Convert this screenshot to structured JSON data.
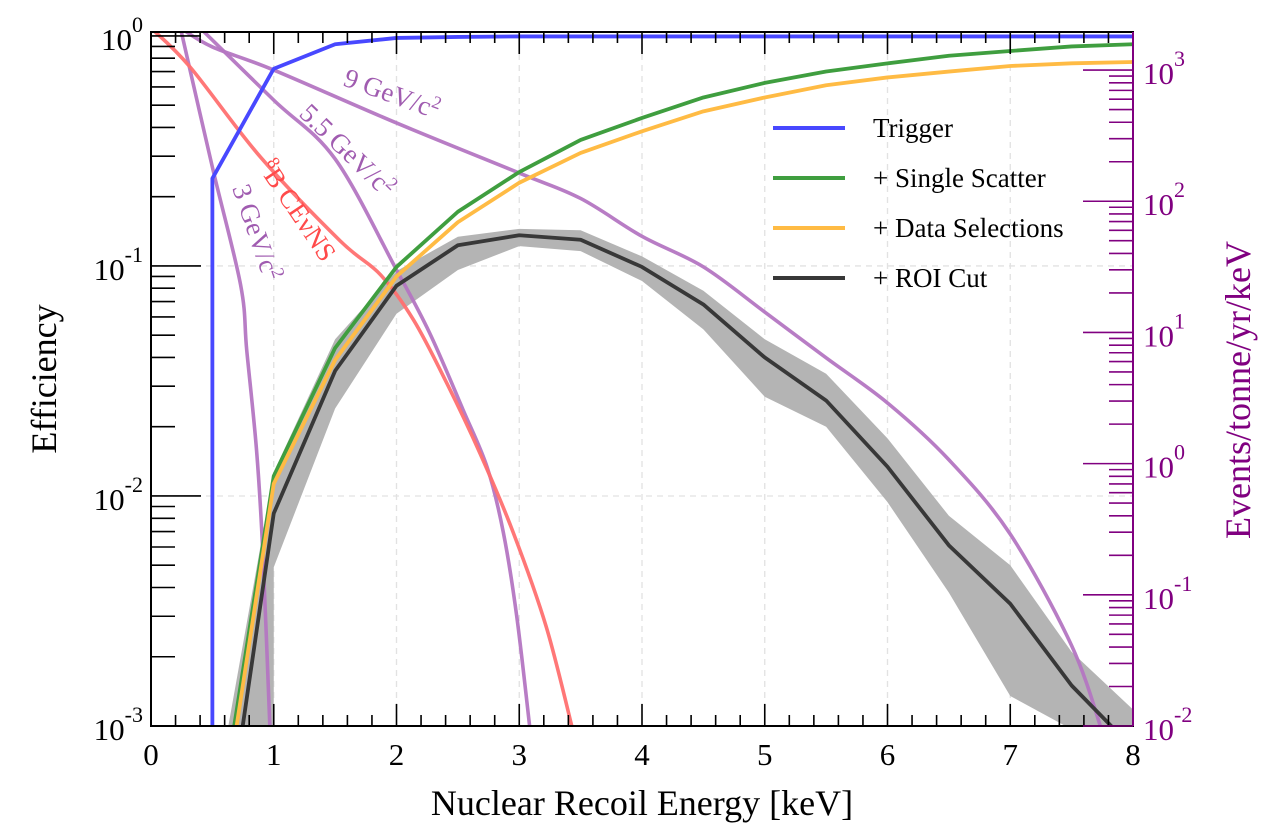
{
  "chart_data": {
    "type": "line",
    "xlabel": "Nuclear Recoil Energy [keV]",
    "ylabel": "Efficiency",
    "y2label": "Events/tonne/yr/keV",
    "xlim": [
      0,
      8
    ],
    "ylim": [
      0.001,
      1.04
    ],
    "y2lim": [
      0.01,
      1950
    ],
    "yscale": "log",
    "y2scale": "log",
    "grid": true,
    "legend_position": "upper-right",
    "xticks": [
      "0",
      "1",
      "2",
      "3",
      "4",
      "5",
      "6",
      "7",
      "8"
    ],
    "yticks": [
      {
        "base": "10",
        "exp": "0"
      },
      {
        "base": "10",
        "exp": "-1"
      },
      {
        "base": "10",
        "exp": "-2"
      },
      {
        "base": "10",
        "exp": "-3"
      }
    ],
    "y2ticks": [
      {
        "base": "10",
        "exp": "3"
      },
      {
        "base": "10",
        "exp": "2"
      },
      {
        "base": "10",
        "exp": "1"
      },
      {
        "base": "10",
        "exp": "0"
      },
      {
        "base": "10",
        "exp": "-1"
      },
      {
        "base": "10",
        "exp": "-2"
      }
    ],
    "colors": {
      "trigger": "#4848ff",
      "single": "#3f9e3f",
      "data": "#ffbb44",
      "roi": "#383838",
      "band": "#b4b4b4",
      "wimp": "#b476c2",
      "cevns": "#ff7070",
      "right_axis": "#800080"
    },
    "efficiency_series": [
      {
        "name": "Trigger",
        "color": "#4848ff",
        "points": [
          [
            0.5,
            0.001
          ],
          [
            0.5,
            0.24
          ],
          [
            1,
            0.72
          ],
          [
            1.5,
            0.92
          ],
          [
            2,
            0.98
          ],
          [
            2.5,
            0.99
          ],
          [
            3,
            0.995
          ],
          [
            4,
            0.995
          ],
          [
            5,
            0.995
          ],
          [
            6,
            0.995
          ],
          [
            7,
            0.995
          ],
          [
            8,
            0.995
          ]
        ]
      },
      {
        "name": "+ Single Scatter",
        "color": "#3f9e3f",
        "points": [
          [
            0.67,
            0.001
          ],
          [
            1,
            0.0122
          ],
          [
            1.5,
            0.044
          ],
          [
            2,
            0.099
          ],
          [
            2.5,
            0.172
          ],
          [
            3,
            0.256
          ],
          [
            3.5,
            0.353
          ],
          [
            4,
            0.44
          ],
          [
            4.5,
            0.54
          ],
          [
            5,
            0.625
          ],
          [
            5.5,
            0.7
          ],
          [
            6,
            0.76
          ],
          [
            6.5,
            0.82
          ],
          [
            7,
            0.86
          ],
          [
            7.5,
            0.9
          ],
          [
            8,
            0.92
          ]
        ]
      },
      {
        "name": "+ Data Selections",
        "color": "#ffbb44",
        "points": [
          [
            0.69,
            0.001
          ],
          [
            1,
            0.0113
          ],
          [
            1.5,
            0.039
          ],
          [
            2,
            0.09
          ],
          [
            2.5,
            0.155
          ],
          [
            3,
            0.23
          ],
          [
            3.5,
            0.31
          ],
          [
            4,
            0.385
          ],
          [
            4.5,
            0.47
          ],
          [
            5,
            0.54
          ],
          [
            5.5,
            0.61
          ],
          [
            6,
            0.66
          ],
          [
            6.5,
            0.7
          ],
          [
            7,
            0.74
          ],
          [
            7.5,
            0.76
          ],
          [
            8,
            0.77
          ]
        ]
      },
      {
        "name": "+ ROI Cut",
        "color": "#383838",
        "points": [
          [
            0.74,
            0.001
          ],
          [
            1,
            0.0084
          ],
          [
            1.5,
            0.035
          ],
          [
            2,
            0.082
          ],
          [
            2.5,
            0.123
          ],
          [
            3,
            0.136
          ],
          [
            3.5,
            0.13
          ],
          [
            4,
            0.099
          ],
          [
            4.5,
            0.068
          ],
          [
            5,
            0.04
          ],
          [
            5.5,
            0.026
          ],
          [
            6,
            0.0134
          ],
          [
            6.5,
            0.0061
          ],
          [
            7,
            0.0034
          ],
          [
            7.5,
            0.0015
          ],
          [
            7.87,
            0.001
          ]
        ]
      }
    ],
    "roi_band": {
      "upper": [
        [
          0.63,
          0.001
        ],
        [
          1,
          0.0127
        ],
        [
          1.5,
          0.048
        ],
        [
          2,
          0.095
        ],
        [
          2.5,
          0.134
        ],
        [
          3,
          0.145
        ],
        [
          3.5,
          0.143
        ],
        [
          4,
          0.11
        ],
        [
          4.5,
          0.078
        ],
        [
          5,
          0.048
        ],
        [
          5.5,
          0.034
        ],
        [
          6,
          0.0178
        ],
        [
          6.5,
          0.0082
        ],
        [
          7,
          0.005
        ],
        [
          7.5,
          0.0021
        ],
        [
          8,
          0.00118
        ]
      ],
      "lower": [
        [
          1,
          0.0049
        ],
        [
          1.5,
          0.024
        ],
        [
          2,
          0.062
        ],
        [
          2.5,
          0.096
        ],
        [
          3,
          0.122
        ],
        [
          3.5,
          0.116
        ],
        [
          4,
          0.086
        ],
        [
          4.5,
          0.053
        ],
        [
          5,
          0.027
        ],
        [
          5.5,
          0.02
        ],
        [
          6,
          0.0094
        ],
        [
          6.5,
          0.0038
        ],
        [
          7,
          0.00135
        ],
        [
          7.45,
          0.001
        ]
      ]
    },
    "rate_series": [
      {
        "label": "9 GeV/c",
        "color": "#b476c2",
        "points": [
          [
            0.24,
            1950
          ],
          [
            0.5,
            1500
          ],
          [
            1,
            1000
          ],
          [
            2,
            395
          ],
          [
            3,
            164
          ],
          [
            3.5,
            105
          ],
          [
            4,
            54
          ],
          [
            4.5,
            31.6
          ],
          [
            5,
            14.3
          ],
          [
            5.5,
            6.4
          ],
          [
            6,
            2.9
          ],
          [
            6.5,
            1.07
          ],
          [
            7,
            0.29
          ],
          [
            7.5,
            0.041
          ],
          [
            7.75,
            0.01
          ]
        ]
      },
      {
        "label": "5.5 GeV/c",
        "color": "#b476c2",
        "points": [
          [
            0.4,
            1950
          ],
          [
            1,
            590
          ],
          [
            1.5,
            210
          ],
          [
            2,
            30
          ],
          [
            2.27,
            9.9
          ],
          [
            2.54,
            2.6
          ],
          [
            2.74,
            0.93
          ],
          [
            2.87,
            0.3
          ],
          [
            2.98,
            0.068
          ],
          [
            3.09,
            0.01
          ]
        ]
      },
      {
        "label": "3 GeV/c",
        "color": "#b476c2",
        "points": [
          [
            0.24,
            1950
          ],
          [
            0.5,
            182
          ],
          [
            0.73,
            23
          ],
          [
            0.78,
            7.3
          ],
          [
            0.86,
            1.26
          ],
          [
            0.91,
            0.22
          ],
          [
            0.97,
            0.01
          ]
        ]
      },
      {
        "label": "B CEνNS",
        "color": "#ff7070",
        "points": [
          [
            0,
            2000
          ],
          [
            0.32,
            1050
          ],
          [
            0.89,
            218
          ],
          [
            1.54,
            50
          ],
          [
            1.87,
            27.5
          ],
          [
            2.14,
            12.4
          ],
          [
            2.41,
            4.1
          ],
          [
            2.68,
            1.2
          ],
          [
            2.95,
            0.3
          ],
          [
            3.22,
            0.057
          ],
          [
            3.44,
            0.01
          ]
        ]
      }
    ],
    "annotations": {
      "nine": "9 GeV/c",
      "five": "5.5 GeV/c",
      "three": "3 GeV/c",
      "cevns_sup": "8",
      "cevns": "B CEνNS",
      "sq": "2"
    }
  }
}
